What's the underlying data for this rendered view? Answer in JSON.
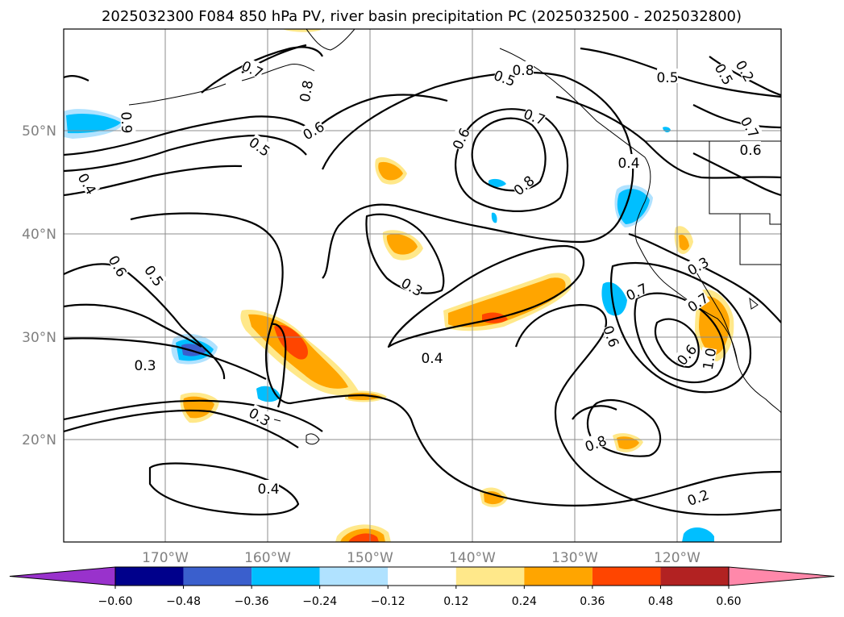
{
  "title": "2025032300 F084 850 hPa PV, river basin precipitation PC (2025032500 - 2025032800)",
  "lon_labels": [
    "170°W",
    "160°W",
    "150°W",
    "140°W",
    "130°W",
    "120°W"
  ],
  "lat_labels": [
    "50°N",
    "40°N",
    "30°N",
    "20°N"
  ],
  "contour_labels": [
    "0.7",
    "0.8",
    "0.9",
    "0.5",
    "0.6",
    "0.4",
    "0.5",
    "0.6",
    "0.7",
    "0.8",
    "0.4",
    "0.6",
    "0.5",
    "0.3",
    "0.7",
    "0.6",
    "0.5",
    "0.3",
    "0.4",
    "0.3",
    "0.3",
    "0.7",
    "0.6",
    "1.0",
    "0.8",
    "0.4",
    "0.2",
    "0.2",
    "0.5",
    "0.7",
    "0.8",
    "0.6"
  ],
  "colorbar": {
    "ticks": [
      "−0.60",
      "−0.48",
      "−0.36",
      "−0.24",
      "−0.12",
      "0.12",
      "0.24",
      "0.36",
      "0.48",
      "0.60"
    ],
    "colors": [
      "#9932cc",
      "#00008b",
      "#3a5fcd",
      "#00bfff",
      "#b0e2ff",
      "#ffffff",
      "#ffe88a",
      "#ffa500",
      "#ff4500",
      "#b22222",
      "#ff88aa"
    ]
  }
}
